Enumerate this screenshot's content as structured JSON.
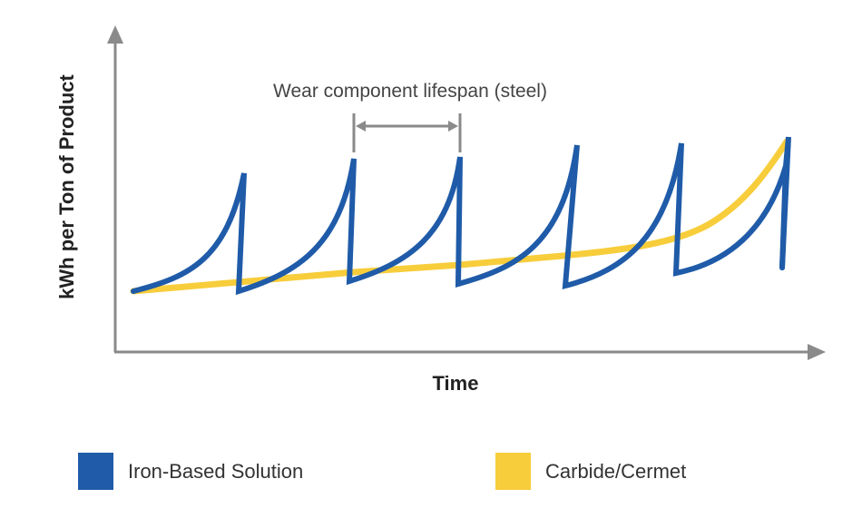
{
  "chart_data": {
    "type": "line",
    "ylabel": "kWh per Ton of Product",
    "xlabel": "Time",
    "annotation": "Wear component lifespan (steel)",
    "series": [
      {
        "name": "Iron-Based Solution",
        "color": "#1f5ba8"
      },
      {
        "name": "Carbide/Cermet",
        "color": "#f7cd3b"
      }
    ]
  },
  "legend": {
    "items": [
      {
        "label": "Iron-Based Solution",
        "color": "#1f5ba8"
      },
      {
        "label": "Carbide/Cermet",
        "color": "#f7cd3b"
      }
    ]
  }
}
